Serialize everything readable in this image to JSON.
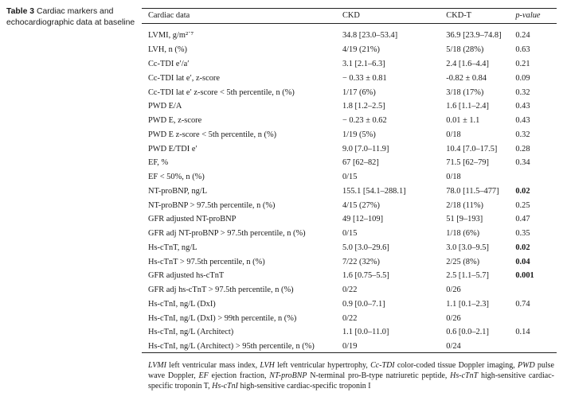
{
  "caption": {
    "label": "Table 3",
    "text": "Cardiac markers and echocardiographic data at baseline"
  },
  "table": {
    "headers": [
      "Cardiac data",
      "CKD",
      "CKD-T",
      "p-value"
    ],
    "rows": [
      {
        "label": "LVMI, g/m²˙⁷",
        "ckd": "34.8 [23.0–53.4]",
        "ckdt": "36.9 [23.9–74.8]",
        "p": "0.24",
        "bold": false
      },
      {
        "label": "LVH, n (%)",
        "ckd": "4/19 (21%)",
        "ckdt": "5/18 (28%)",
        "p": "0.63",
        "bold": false
      },
      {
        "label": "Cc-TDI e′/a′",
        "ckd": "3.1 [2.1–6.3]",
        "ckdt": "2.4 [1.6–4.4]",
        "p": "0.21",
        "bold": false
      },
      {
        "label": "Cc-TDI lat e′, z-score",
        "ckd": "− 0.33 ± 0.81",
        "ckdt": "-0.82 ± 0.84",
        "p": "0.09",
        "bold": false
      },
      {
        "label": "Cc-TDI lat e′ z-score < 5th percentile, n (%)",
        "ckd": "1/17 (6%)",
        "ckdt": "3/18 (17%)",
        "p": "0.32",
        "bold": false
      },
      {
        "label": "PWD E/A",
        "ckd": "1.8 [1.2–2.5]",
        "ckdt": "1.6 [1.1–2.4]",
        "p": "0.43",
        "bold": false
      },
      {
        "label": "PWD E, z-score",
        "ckd": "− 0.23 ± 0.62",
        "ckdt": "0.01 ± 1.1",
        "p": "0.43",
        "bold": false
      },
      {
        "label": "PWD E z-score < 5th percentile, n (%)",
        "ckd": "1/19 (5%)",
        "ckdt": "0/18",
        "p": "0.32",
        "bold": false
      },
      {
        "label": "PWD E/TDI e′",
        "ckd": "9.0 [7.0–11.9]",
        "ckdt": "10.4 [7.0–17.5]",
        "p": "0.28",
        "bold": false
      },
      {
        "label": "EF, %",
        "ckd": "67 [62–82]",
        "ckdt": "71.5 [62–79]",
        "p": "0.34",
        "bold": false
      },
      {
        "label": "EF < 50%, n (%)",
        "ckd": "0/15",
        "ckdt": "0/18",
        "p": "",
        "bold": false
      },
      {
        "label": "NT-proBNP, ng/L",
        "ckd": "155.1 [54.1–288.1]",
        "ckdt": "78.0 [11.5–477]",
        "p": "0.02",
        "bold": true
      },
      {
        "label": "NT-proBNP > 97.5th percentile, n (%)",
        "ckd": "4/15 (27%)",
        "ckdt": "2/18 (11%)",
        "p": "0.25",
        "bold": false
      },
      {
        "label": "GFR adjusted NT-proBNP",
        "ckd": "49 [12–109]",
        "ckdt": "51 [9–193]",
        "p": "0.47",
        "bold": false
      },
      {
        "label": "GFR adj NT-proBNP > 97.5th percentile, n (%)",
        "ckd": "0/15",
        "ckdt": "1/18 (6%)",
        "p": "0.35",
        "bold": false
      },
      {
        "label": "Hs-cTnT, ng/L",
        "ckd": "5.0 [3.0–29.6]",
        "ckdt": "3.0 [3.0–9.5]",
        "p": "0.02",
        "bold": true
      },
      {
        "label": "Hs-cTnT > 97.5th percentile, n (%)",
        "ckd": "7/22 (32%)",
        "ckdt": "2/25 (8%)",
        "p": "0.04",
        "bold": true
      },
      {
        "label": "GFR adjusted hs-cTnT",
        "ckd": "1.6 [0.75–5.5]",
        "ckdt": "2.5 [1.1–5.7]",
        "p": "0.001",
        "bold": true
      },
      {
        "label": "GFR adj hs-cTnT > 97.5th percentile, n (%)",
        "ckd": "0/22",
        "ckdt": "0/26",
        "p": "",
        "bold": false
      },
      {
        "label": "Hs-cTnI, ng/L (DxI)",
        "ckd": "0.9 [0.0–7.1]",
        "ckdt": "1.1 [0.1–2.3]",
        "p": "0.74",
        "bold": false
      },
      {
        "label": "Hs-cTnI, ng/L (DxI) > 99th percentile, n (%)",
        "ckd": "0/22",
        "ckdt": "0/26",
        "p": "",
        "bold": false
      },
      {
        "label": "Hs-cTnI, ng/L (Architect)",
        "ckd": "1.1 [0.0–11.0]",
        "ckdt": "0.6 [0.0–2.1]",
        "p": "0.14",
        "bold": false
      },
      {
        "label": "Hs-cTnI, ng/L (Architect) > 95th percentile, n (%)",
        "ckd": "0/19",
        "ckdt": "0/24",
        "p": "",
        "bold": false
      }
    ]
  },
  "footnote": [
    {
      "abbr": "LVMI",
      "text": " left ventricular mass index, "
    },
    {
      "abbr": "LVH",
      "text": " left ventricular hypertrophy, "
    },
    {
      "abbr": "Cc-TDI",
      "text": " color-coded tissue Doppler imaging, "
    },
    {
      "abbr": "PWD",
      "text": " pulse wave Doppler, "
    },
    {
      "abbr": "EF",
      "text": " ejection fraction, "
    },
    {
      "abbr": "NT-proBNP",
      "text": " N-terminal pro-B-type natriuretic peptide, "
    },
    {
      "abbr": "Hs-cTnT",
      "text": " high-sensitive cardiac-specific troponin T, "
    },
    {
      "abbr": "Hs-cTnI",
      "text": " high-sensitive cardiac-specific troponin I"
    }
  ]
}
